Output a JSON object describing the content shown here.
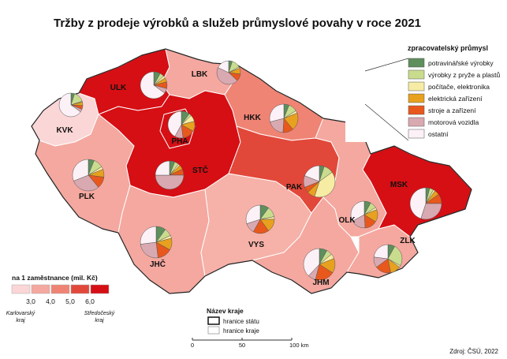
{
  "title": "Tržby z prodeje výrobků a služeb průmyslové povahy v roce 2021",
  "industry_legend": {
    "title": "zpracovatelský průmysl",
    "items": [
      {
        "label": "potravinářské výrobky",
        "color": "#5e8f5c"
      },
      {
        "label": "výrobky z pryže a plastů",
        "color": "#c9dc8e"
      },
      {
        "label": "počítače, elektronika",
        "color": "#f7eca4"
      },
      {
        "label": "elektrická zařízení",
        "color": "#e8a11e"
      },
      {
        "label": "stroje a zařízení",
        "color": "#e8581c"
      },
      {
        "label": "motorová vozidla",
        "color": "#d9a9b1"
      },
      {
        "label": "ostatní",
        "color": "#fcf1f6"
      }
    ]
  },
  "regions": [
    {
      "code": "KVK",
      "color": "#fbd6d6",
      "pie": [
        5,
        15,
        1,
        5,
        5,
        4,
        65
      ]
    },
    {
      "code": "ULK",
      "color": "#d50f14",
      "pie": [
        8,
        5,
        3,
        5,
        8,
        6,
        65
      ]
    },
    {
      "code": "LBK",
      "color": "#f4a89f",
      "pie": [
        5,
        12,
        2,
        8,
        10,
        45,
        18
      ]
    },
    {
      "code": "HKK",
      "color": "#ef8474",
      "pie": [
        6,
        10,
        3,
        20,
        12,
        20,
        29
      ]
    },
    {
      "code": "STČ",
      "color": "#d50f14",
      "pie": [
        6,
        5,
        2,
        5,
        7,
        50,
        25
      ]
    },
    {
      "code": "PHA",
      "color": "#d50f14",
      "pie": [
        10,
        3,
        8,
        12,
        15,
        10,
        42
      ]
    },
    {
      "code": "PLK",
      "color": "#f4a89f",
      "pie": [
        6,
        10,
        3,
        8,
        12,
        30,
        31
      ]
    },
    {
      "code": "JHČ",
      "color": "#f4a89f",
      "pie": [
        10,
        8,
        3,
        12,
        15,
        25,
        27
      ]
    },
    {
      "code": "VYS",
      "color": "#f6b2a8",
      "pie": [
        10,
        12,
        3,
        15,
        18,
        12,
        30
      ]
    },
    {
      "code": "PAK",
      "color": "#e2483a",
      "pie": [
        5,
        10,
        40,
        8,
        6,
        12,
        19
      ]
    },
    {
      "code": "JHM",
      "color": "#f4a89f",
      "pie": [
        8,
        6,
        5,
        15,
        20,
        8,
        38
      ]
    },
    {
      "code": "OLK",
      "color": "#f4a89f",
      "pie": [
        8,
        8,
        3,
        15,
        15,
        18,
        33
      ]
    },
    {
      "code": "ZLK",
      "color": "#f4a89f",
      "pie": [
        8,
        25,
        2,
        12,
        18,
        12,
        23
      ]
    },
    {
      "code": "MSK",
      "color": "#d50f14",
      "pie": [
        4,
        4,
        2,
        5,
        10,
        30,
        45
      ]
    }
  ],
  "density_legend": {
    "title": "na 1 zaměstnance (mil. Kč)",
    "colors": [
      "#fbd6d6",
      "#f4a89f",
      "#ef8474",
      "#e2483a",
      "#d50f14"
    ],
    "thresholds": [
      "3,0",
      "4,0",
      "5,0",
      "6,0"
    ],
    "note_left": [
      "Karlovarský",
      "kraj"
    ],
    "note_right": [
      "Středočeský",
      "kraj"
    ]
  },
  "boundary_legend": {
    "title": "Název kraje",
    "state": "hranice státu",
    "region": "hranice kraje"
  },
  "scale": [
    "0",
    "50",
    "100 km"
  ],
  "source": "Zdroj: ČSÚ, 2022"
}
